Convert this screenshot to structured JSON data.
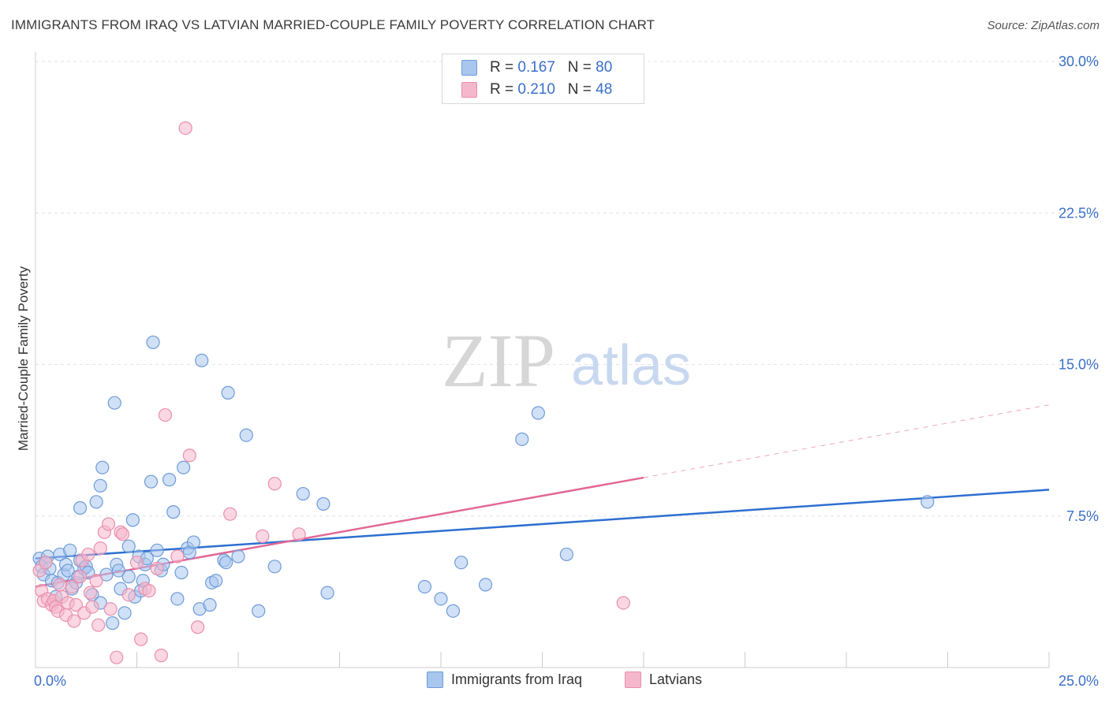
{
  "title": "IMMIGRANTS FROM IRAQ VS LATVIAN MARRIED-COUPLE FAMILY POVERTY CORRELATION CHART",
  "source": "Source: ZipAtlas.com",
  "watermark": {
    "zip": "ZIP",
    "atlas": "atlas"
  },
  "legend": {
    "rows": [
      {
        "r_label": "R = ",
        "r_value": "0.167",
        "n_label": "N = ",
        "n_value": "80"
      },
      {
        "r_label": "R = ",
        "r_value": "0.210",
        "n_label": "N = ",
        "n_value": "48"
      }
    ]
  },
  "colors": {
    "blue_fill": "#a9c6ee",
    "blue_stroke": "#6e9bd8",
    "blue_line": "#2d6fd0",
    "pink_fill": "#f5b7cb",
    "pink_stroke": "#e98fae",
    "pink_line": "#e26896",
    "axis_text": "#3a6fc9",
    "grid": "#e3e3e3"
  },
  "chart_data": {
    "type": "scatter",
    "title": "IMMIGRANTS FROM IRAQ VS LATVIAN MARRIED-COUPLE FAMILY POVERTY CORRELATION CHART",
    "xlabel": "",
    "ylabel": "Married-Couple Family Poverty",
    "xlim": [
      0,
      25
    ],
    "ylim": [
      0,
      30
    ],
    "x_tick_labels": [
      "0.0%",
      "25.0%"
    ],
    "y_ticks": [
      7.5,
      15.0,
      22.5,
      30.0
    ],
    "y_tick_labels": [
      "7.5%",
      "15.0%",
      "22.5%",
      "30.0%"
    ],
    "grid": "horizontal dashed",
    "legend_position": "top-center",
    "series": [
      {
        "name": "Immigrants from Iraq",
        "color": "#a9c6ee",
        "trend": {
          "x": [
            0,
            25
          ],
          "y": [
            5.4,
            8.8
          ]
        },
        "points": [
          [
            0.1,
            5.4
          ],
          [
            0.15,
            5.0
          ],
          [
            0.2,
            4.6
          ],
          [
            0.3,
            5.5
          ],
          [
            0.35,
            4.9
          ],
          [
            0.4,
            4.3
          ],
          [
            0.5,
            3.5
          ],
          [
            0.55,
            4.2
          ],
          [
            0.6,
            5.6
          ],
          [
            0.7,
            4.6
          ],
          [
            0.75,
            5.1
          ],
          [
            0.8,
            4.8
          ],
          [
            0.85,
            5.8
          ],
          [
            0.9,
            3.9
          ],
          [
            1.0,
            4.2
          ],
          [
            1.05,
            4.5
          ],
          [
            1.1,
            5.3
          ],
          [
            1.2,
            4.9
          ],
          [
            1.25,
            5.0
          ],
          [
            1.3,
            4.7
          ],
          [
            1.1,
            7.9
          ],
          [
            1.5,
            8.2
          ],
          [
            1.6,
            9.0
          ],
          [
            1.65,
            9.9
          ],
          [
            1.4,
            3.6
          ],
          [
            1.6,
            3.2
          ],
          [
            1.75,
            4.6
          ],
          [
            1.9,
            2.2
          ],
          [
            1.95,
            13.1
          ],
          [
            2.0,
            5.1
          ],
          [
            2.05,
            4.8
          ],
          [
            2.1,
            3.9
          ],
          [
            2.2,
            2.7
          ],
          [
            2.3,
            4.5
          ],
          [
            2.3,
            6.0
          ],
          [
            2.4,
            7.3
          ],
          [
            2.45,
            3.5
          ],
          [
            2.55,
            5.5
          ],
          [
            2.6,
            3.8
          ],
          [
            2.65,
            4.3
          ],
          [
            2.7,
            5.1
          ],
          [
            2.75,
            5.4
          ],
          [
            2.85,
            9.2
          ],
          [
            2.9,
            16.1
          ],
          [
            3.0,
            5.8
          ],
          [
            3.1,
            4.8
          ],
          [
            3.15,
            5.1
          ],
          [
            3.3,
            9.3
          ],
          [
            3.4,
            7.7
          ],
          [
            3.5,
            3.4
          ],
          [
            3.6,
            4.7
          ],
          [
            3.65,
            9.9
          ],
          [
            3.75,
            5.9
          ],
          [
            3.8,
            5.7
          ],
          [
            3.9,
            6.2
          ],
          [
            4.05,
            2.9
          ],
          [
            4.1,
            15.2
          ],
          [
            4.3,
            3.1
          ],
          [
            4.35,
            4.2
          ],
          [
            4.45,
            4.3
          ],
          [
            4.65,
            5.3
          ],
          [
            4.7,
            5.2
          ],
          [
            4.75,
            13.6
          ],
          [
            5.0,
            5.5
          ],
          [
            5.2,
            11.5
          ],
          [
            5.5,
            2.8
          ],
          [
            5.9,
            5.0
          ],
          [
            6.6,
            8.6
          ],
          [
            7.1,
            8.1
          ],
          [
            7.2,
            3.7
          ],
          [
            9.6,
            4.0
          ],
          [
            10.0,
            3.4
          ],
          [
            10.3,
            2.8
          ],
          [
            10.5,
            5.2
          ],
          [
            11.1,
            4.1
          ],
          [
            12.0,
            11.3
          ],
          [
            12.4,
            12.6
          ],
          [
            13.1,
            5.6
          ],
          [
            22.0,
            8.2
          ],
          [
            0.25,
            5.2
          ]
        ]
      },
      {
        "name": "Latvians",
        "color": "#f5b7cb",
        "trend": {
          "x": [
            0,
            15
          ],
          "y": [
            4.0,
            9.4
          ]
        },
        "trend_dashed": {
          "x": [
            15,
            25
          ],
          "y": [
            9.4,
            13.0
          ]
        },
        "points": [
          [
            0.1,
            4.8
          ],
          [
            0.15,
            3.8
          ],
          [
            0.2,
            3.3
          ],
          [
            0.25,
            5.2
          ],
          [
            0.3,
            3.4
          ],
          [
            0.4,
            3.1
          ],
          [
            0.45,
            3.3
          ],
          [
            0.5,
            3.0
          ],
          [
            0.55,
            2.8
          ],
          [
            0.6,
            4.1
          ],
          [
            0.65,
            3.5
          ],
          [
            0.75,
            2.6
          ],
          [
            0.8,
            3.2
          ],
          [
            0.9,
            4.0
          ],
          [
            0.95,
            2.3
          ],
          [
            1.0,
            3.1
          ],
          [
            1.1,
            4.5
          ],
          [
            1.15,
            5.3
          ],
          [
            1.2,
            2.7
          ],
          [
            1.3,
            5.6
          ],
          [
            1.35,
            3.7
          ],
          [
            1.4,
            3.0
          ],
          [
            1.5,
            4.3
          ],
          [
            1.55,
            2.1
          ],
          [
            1.6,
            5.9
          ],
          [
            1.7,
            6.7
          ],
          [
            1.8,
            7.1
          ],
          [
            1.85,
            2.9
          ],
          [
            2.0,
            0.5
          ],
          [
            2.1,
            6.7
          ],
          [
            2.15,
            6.6
          ],
          [
            2.3,
            3.6
          ],
          [
            2.5,
            5.2
          ],
          [
            2.6,
            1.4
          ],
          [
            2.7,
            3.9
          ],
          [
            2.8,
            3.8
          ],
          [
            3.0,
            4.9
          ],
          [
            3.1,
            0.6
          ],
          [
            3.2,
            12.5
          ],
          [
            3.5,
            5.5
          ],
          [
            3.7,
            26.7
          ],
          [
            3.8,
            10.5
          ],
          [
            4.0,
            2.0
          ],
          [
            4.8,
            7.6
          ],
          [
            5.6,
            6.5
          ],
          [
            5.9,
            9.1
          ],
          [
            6.5,
            6.6
          ],
          [
            14.5,
            3.2
          ]
        ]
      }
    ]
  },
  "bottom_legend": [
    "Immigrants from Iraq",
    "Latvians"
  ]
}
